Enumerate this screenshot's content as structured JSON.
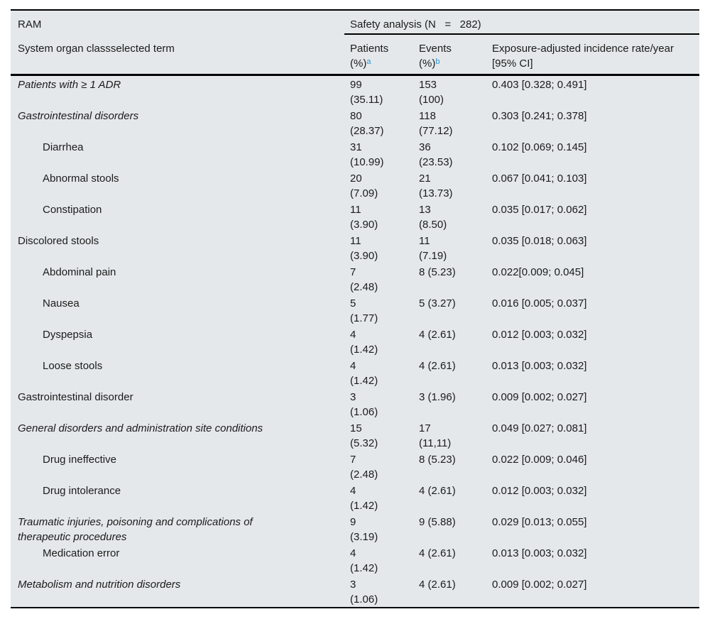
{
  "colors": {
    "background": "#e4e8ea",
    "accent_blue": "#2e96d2",
    "rule": "#000000",
    "text": "#1b1b1b"
  },
  "header": {
    "ram": "RAM",
    "soc_label": "System organ classselected term",
    "safety_analysis": "Safety analysis (N   =   282)",
    "patients_line1": "Patients",
    "patients_line2": "(%)",
    "patients_sup": "a",
    "events_line1": "Events",
    "events_line2": "(%)",
    "events_sup": "b",
    "rate_line1": "Exposure-adjusted incidence rate/year",
    "rate_line2": "[95% CI]"
  },
  "rows": [
    {
      "term": "Patients with ≥ 1 ADR",
      "italic": true,
      "indent": false,
      "patients": [
        "99",
        "(35.11)"
      ],
      "events": [
        "153",
        "(100)"
      ],
      "rate": "0.403 [0.328; 0.491]"
    },
    {
      "term": "Gastrointestinal disorders",
      "italic": true,
      "indent": false,
      "patients": [
        "80",
        "(28.37)"
      ],
      "events": [
        "118",
        "(77.12)"
      ],
      "rate": "0.303 [0.241; 0.378]"
    },
    {
      "term": "Diarrhea",
      "italic": false,
      "indent": true,
      "patients": [
        "31",
        "(10.99)"
      ],
      "events": [
        "36",
        "(23.53)"
      ],
      "rate": "0.102 [0.069; 0.145]"
    },
    {
      "term": "Abnormal stools",
      "italic": false,
      "indent": true,
      "patients": [
        "20",
        "(7.09)"
      ],
      "events": [
        "21",
        "(13.73)"
      ],
      "rate": "0.067 [0.041; 0.103]"
    },
    {
      "term": "Constipation",
      "italic": false,
      "indent": true,
      "patients": [
        "11",
        "(3.90)"
      ],
      "events": [
        "13",
        "(8.50)"
      ],
      "rate": "0.035 [0.017; 0.062]"
    },
    {
      "term": "Discolored stools",
      "italic": false,
      "indent": false,
      "patients": [
        "11",
        "(3.90)"
      ],
      "events": [
        "11",
        "(7.19)"
      ],
      "rate": "0.035 [0.018; 0.063]"
    },
    {
      "term": "Abdominal pain",
      "italic": false,
      "indent": true,
      "patients": [
        "7",
        "(2.48)"
      ],
      "events": [
        "8 (5.23)",
        ""
      ],
      "rate": "0.022[0.009; 0.045]"
    },
    {
      "term": "Nausea",
      "italic": false,
      "indent": true,
      "patients": [
        "5",
        "(1.77)"
      ],
      "events": [
        "5 (3.27)",
        ""
      ],
      "rate": "0.016 [0.005; 0.037]"
    },
    {
      "term": "Dyspepsia",
      "italic": false,
      "indent": true,
      "patients": [
        "4",
        "(1.42)"
      ],
      "events": [
        "4 (2.61)",
        ""
      ],
      "rate": "0.012 [0.003; 0.032]"
    },
    {
      "term": "Loose stools",
      "italic": false,
      "indent": true,
      "patients": [
        "4",
        "(1.42)"
      ],
      "events": [
        "4 (2.61)",
        ""
      ],
      "rate": "0.013 [0.003; 0.032]"
    },
    {
      "term": "Gastrointestinal disorder",
      "italic": false,
      "indent": false,
      "patients": [
        "3",
        "(1.06)"
      ],
      "events": [
        "3 (1.96)",
        ""
      ],
      "rate": "0.009 [0.002; 0.027]"
    },
    {
      "term": "General disorders and administration site conditions",
      "italic": true,
      "indent": false,
      "patients": [
        "15",
        "(5.32)"
      ],
      "events": [
        "17",
        "(11,11)"
      ],
      "rate": "0.049 [0.027; 0.081]"
    },
    {
      "term": "Drug ineffective",
      "italic": false,
      "indent": true,
      "patients": [
        "7",
        "(2.48)"
      ],
      "events": [
        "8 (5.23)",
        ""
      ],
      "rate": "0.022 [0.009; 0.046]"
    },
    {
      "term": "Drug intolerance",
      "italic": false,
      "indent": true,
      "patients": [
        "4",
        "(1.42)"
      ],
      "events": [
        "4 (2.61)",
        ""
      ],
      "rate": "0.012 [0.003; 0.032]"
    },
    {
      "term": "Traumatic injuries, poisoning and complications of therapeutic procedures",
      "italic": true,
      "indent": false,
      "patients": [
        "9",
        "(3.19)"
      ],
      "events": [
        "9 (5.88)",
        ""
      ],
      "rate": "0.029 [0.013; 0.055]"
    },
    {
      "term": "Medication error",
      "italic": false,
      "indent": true,
      "patients": [
        "4",
        "(1.42)"
      ],
      "events": [
        "4 (2.61)",
        ""
      ],
      "rate": "0.013 [0.003; 0.032]"
    },
    {
      "term": "Metabolism and nutrition disorders",
      "italic": true,
      "indent": false,
      "patients": [
        "3",
        "(1.06)"
      ],
      "events": [
        "4 (2.61)",
        ""
      ],
      "rate": "0.009 [0.002; 0.027]"
    }
  ]
}
